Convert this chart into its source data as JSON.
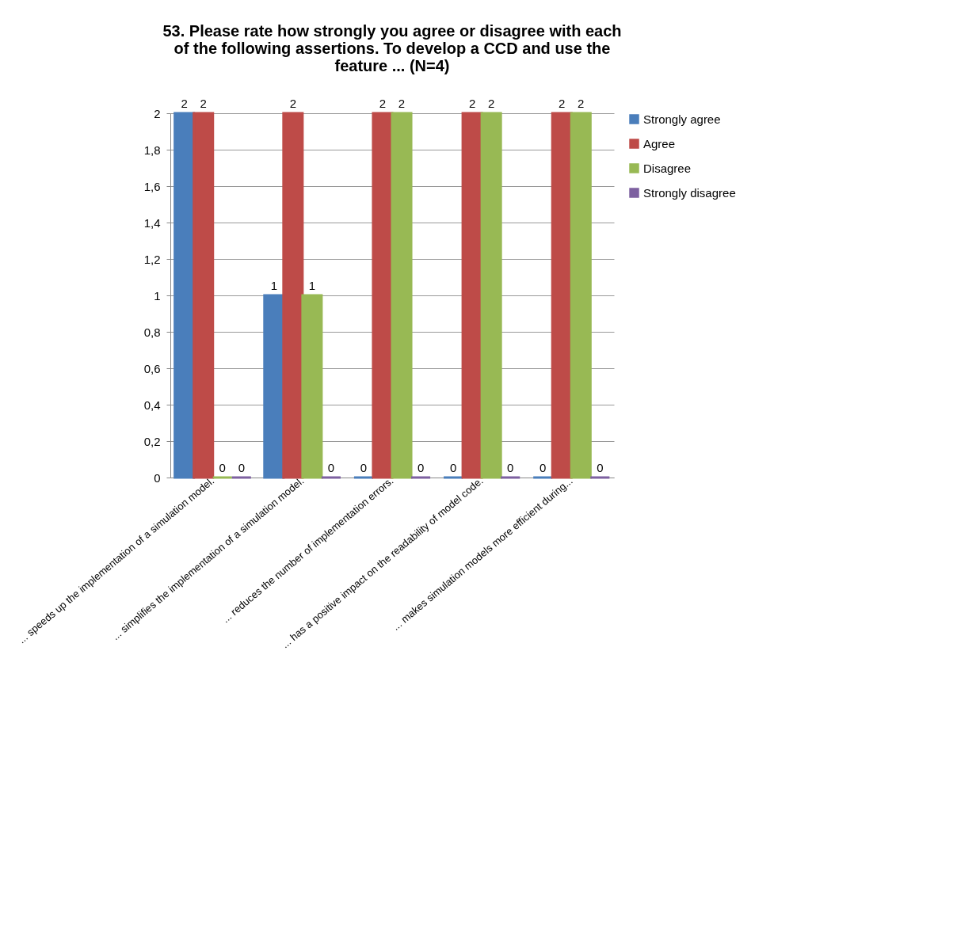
{
  "chart_data": {
    "type": "bar",
    "title": "53. Please rate how strongly you agree or disagree with each of the following assertions. To develop a CCD and use the feature ... (N=4)",
    "categories": [
      "... speeds up the implementation of a simulation model.",
      "... simplifies the implementation of a simulation model.",
      "... reduces the number of implementation errors.",
      "... has a positive impact on the readability of model code.",
      "... makes simulation models more efficient during..."
    ],
    "series": [
      {
        "name": "Strongly agree",
        "color": "#4a7ebb",
        "values": [
          2,
          1,
          0,
          0,
          0
        ]
      },
      {
        "name": "Agree",
        "color": "#be4b48",
        "values": [
          2,
          2,
          2,
          2,
          2
        ]
      },
      {
        "name": "Disagree",
        "color": "#98b954",
        "values": [
          0,
          1,
          2,
          2,
          2
        ]
      },
      {
        "name": "Strongly disagree",
        "color": "#7d60a0",
        "values": [
          0,
          0,
          0,
          0,
          0
        ]
      }
    ],
    "ylim": [
      0,
      2
    ],
    "yticks": [
      0,
      {
        "value": 0.2,
        "label": "0,2"
      },
      {
        "value": 0.4,
        "label": "0,4"
      },
      {
        "value": 0.6,
        "label": "0,6"
      },
      {
        "value": 0.8,
        "label": "0,8"
      },
      1,
      {
        "value": 1.2,
        "label": "1,2"
      },
      {
        "value": 1.4,
        "label": "1,4"
      },
      {
        "value": 1.6,
        "label": "1,6"
      },
      {
        "value": 1.8,
        "label": "1,8"
      },
      2
    ],
    "grid": "y",
    "legend": "right",
    "data_labels": true
  }
}
